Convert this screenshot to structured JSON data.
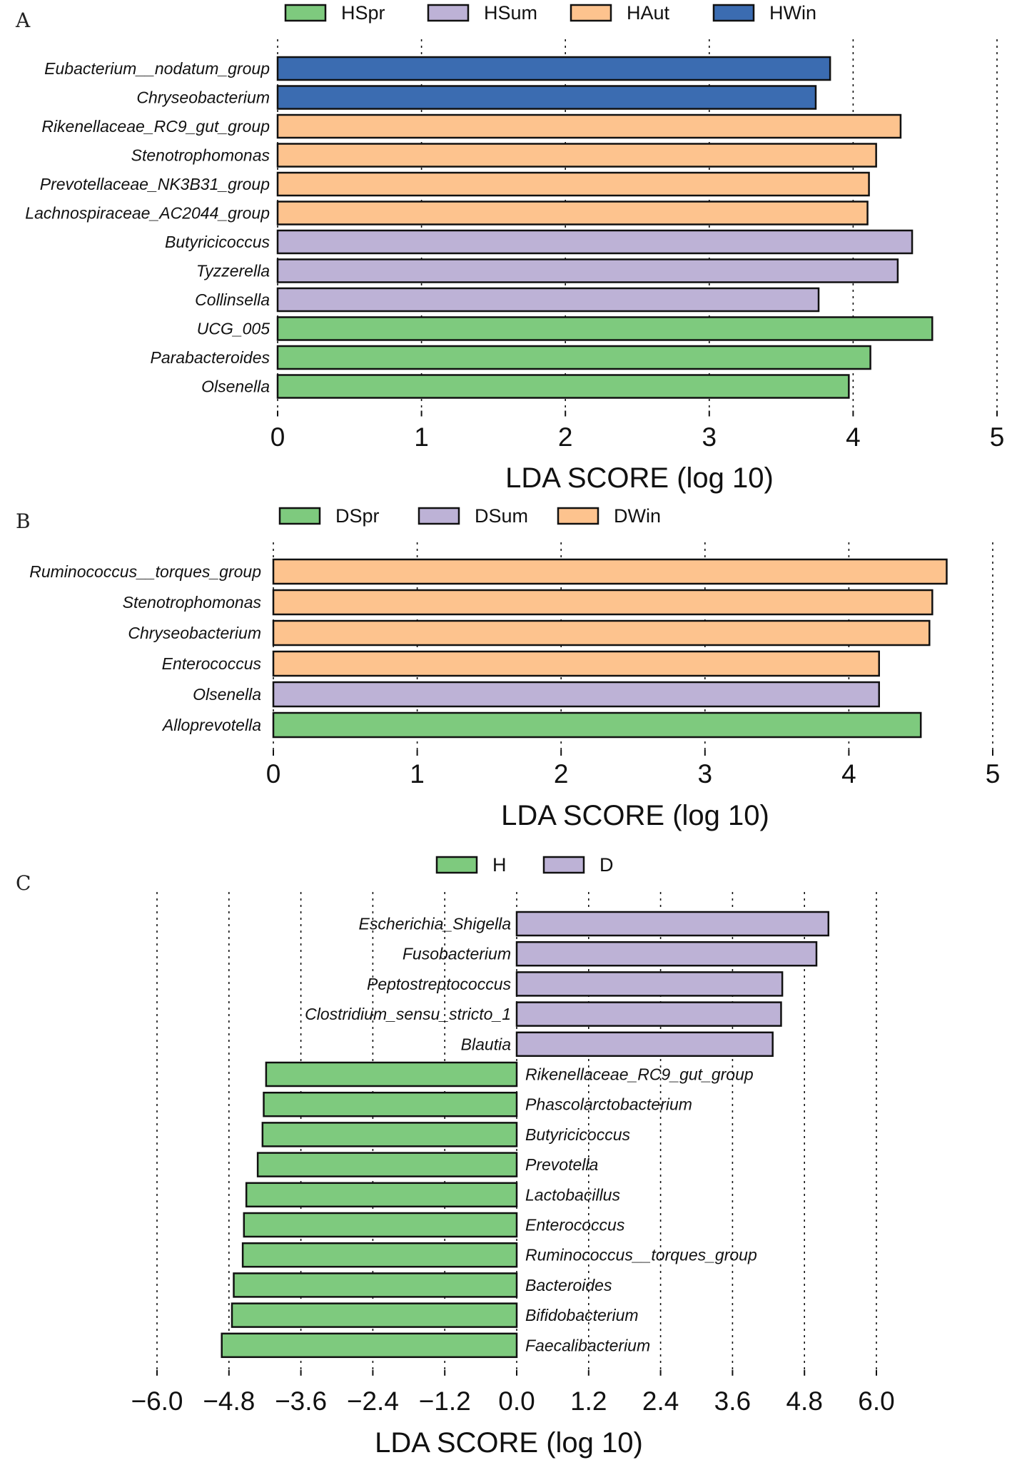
{
  "colors": {
    "green": "#7ECA7E",
    "purple": "#BDB2D6",
    "orange": "#FDC38E",
    "blue": "#3B6CB1"
  },
  "chart_data": [
    {
      "panel": "A",
      "type": "bar",
      "orientation": "horizontal",
      "legend": [
        {
          "name": "HSpr",
          "color": "#7ECA7E"
        },
        {
          "name": "HSum",
          "color": "#BDB2D6"
        },
        {
          "name": "HAut",
          "color": "#FDC38E"
        },
        {
          "name": "HWin",
          "color": "#3B6CB1"
        }
      ],
      "bars": [
        {
          "label": "Eubacterium__nodatum_group",
          "value": 3.84,
          "group": "HWin"
        },
        {
          "label": "Chryseobacterium",
          "value": 3.74,
          "group": "HWin"
        },
        {
          "label": "Rikenellaceae_RC9_gut_group",
          "value": 4.33,
          "group": "HAut"
        },
        {
          "label": "Stenotrophomonas",
          "value": 4.16,
          "group": "HAut"
        },
        {
          "label": "Prevotellaceae_NK3B31_group",
          "value": 4.11,
          "group": "HAut"
        },
        {
          "label": "Lachnospiraceae_AC2044_group",
          "value": 4.1,
          "group": "HAut"
        },
        {
          "label": "Butyricicoccus",
          "value": 4.41,
          "group": "HSum"
        },
        {
          "label": "Tyzzerella",
          "value": 4.31,
          "group": "HSum"
        },
        {
          "label": "Collinsella",
          "value": 3.76,
          "group": "HSum"
        },
        {
          "label": "UCG_005",
          "value": 4.55,
          "group": "HSpr"
        },
        {
          "label": "Parabacteroides",
          "value": 4.12,
          "group": "HSpr"
        },
        {
          "label": "Olsenella",
          "value": 3.97,
          "group": "HSpr"
        }
      ],
      "xlim": [
        0,
        5
      ],
      "xticks": [
        "0",
        "1",
        "2",
        "3",
        "4",
        "5"
      ],
      "xlabel": "LDA SCORE (log 10)",
      "grid": true
    },
    {
      "panel": "B",
      "type": "bar",
      "orientation": "horizontal",
      "legend": [
        {
          "name": "DSpr",
          "color": "#7ECA7E"
        },
        {
          "name": "DSum",
          "color": "#BDB2D6"
        },
        {
          "name": "DWin",
          "color": "#FDC38E"
        }
      ],
      "bars": [
        {
          "label": "Ruminococcus__torques_group",
          "value": 4.68,
          "group": "DWin"
        },
        {
          "label": "Stenotrophomonas",
          "value": 4.58,
          "group": "DWin"
        },
        {
          "label": "Chryseobacterium",
          "value": 4.56,
          "group": "DWin"
        },
        {
          "label": "Enterococcus",
          "value": 4.21,
          "group": "DWin"
        },
        {
          "label": "Olsenella",
          "value": 4.21,
          "group": "DSum"
        },
        {
          "label": "Alloprevotella",
          "value": 4.5,
          "group": "DSpr"
        }
      ],
      "xlim": [
        0,
        5
      ],
      "xticks": [
        "0",
        "1",
        "2",
        "3",
        "4",
        "5"
      ],
      "xlabel": "LDA SCORE (log 10)",
      "grid": true
    },
    {
      "panel": "C",
      "type": "bar",
      "orientation": "horizontal-diverging",
      "legend": [
        {
          "name": "H",
          "color": "#7ECA7E"
        },
        {
          "name": "D",
          "color": "#BDB2D6"
        }
      ],
      "bars": [
        {
          "label": "Escherichia_Shigella",
          "value": 5.2,
          "group": "D"
        },
        {
          "label": "Fusobacterium",
          "value": 5.0,
          "group": "D"
        },
        {
          "label": "Peptostreptococcus",
          "value": 4.43,
          "group": "D"
        },
        {
          "label": "Clostridium_sensu_stricto_1",
          "value": 4.41,
          "group": "D"
        },
        {
          "label": "Blautia",
          "value": 4.27,
          "group": "D"
        },
        {
          "label": "Rikenellaceae_RC9_gut_group",
          "value": -4.18,
          "group": "H"
        },
        {
          "label": "Phascolarctobacterium",
          "value": -4.22,
          "group": "H"
        },
        {
          "label": "Butyricicoccus",
          "value": -4.24,
          "group": "H"
        },
        {
          "label": "Prevotella",
          "value": -4.32,
          "group": "H"
        },
        {
          "label": "Lactobacillus",
          "value": -4.51,
          "group": "H"
        },
        {
          "label": "Enterococcus",
          "value": -4.55,
          "group": "H"
        },
        {
          "label": "Ruminococcus__torques_group",
          "value": -4.57,
          "group": "H"
        },
        {
          "label": "Bacteroides",
          "value": -4.72,
          "group": "H"
        },
        {
          "label": "Bifidobacterium",
          "value": -4.75,
          "group": "H"
        },
        {
          "label": "Faecalibacterium",
          "value": -4.92,
          "group": "H"
        }
      ],
      "xlim": [
        -6.0,
        6.0
      ],
      "xticks": [
        "−6.0",
        "−4.8",
        "−3.6",
        "−2.4",
        "−1.2",
        "0.0",
        "1.2",
        "2.4",
        "3.6",
        "4.8",
        "6.0"
      ],
      "xlabel": "LDA SCORE (log 10)",
      "grid": true
    }
  ]
}
